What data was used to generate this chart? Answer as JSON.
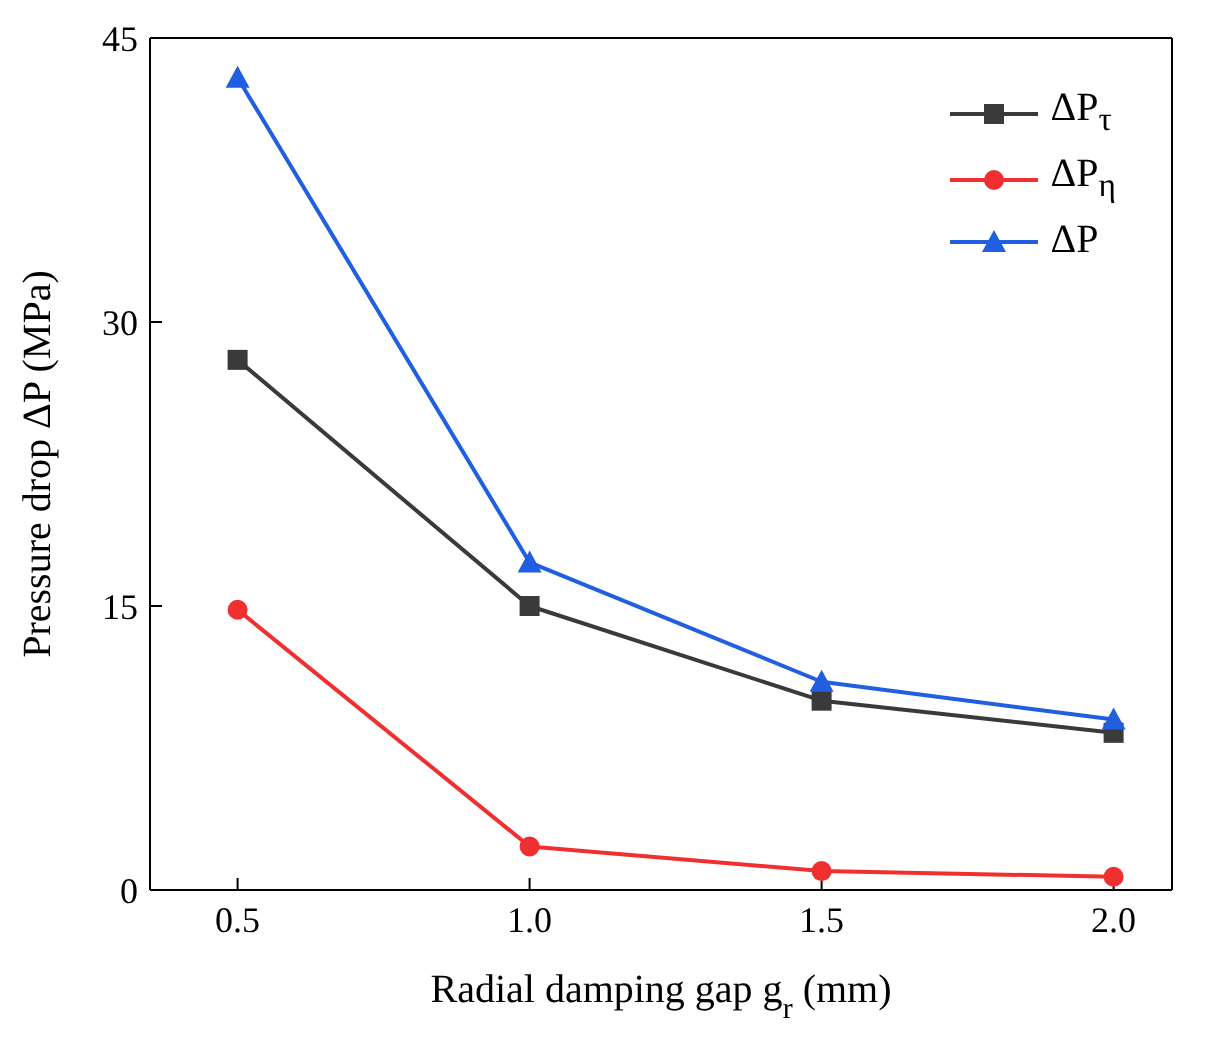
{
  "chart_data": {
    "type": "line",
    "xlabel": "Radial damping gap g$_{r}$ (mm)",
    "ylabel": "Pressure drop ΔP (MPa)",
    "x": [
      0.5,
      1.0,
      1.5,
      2.0
    ],
    "series": [
      {
        "name": "ΔP$_{τ}$",
        "color": "#3a3a3a",
        "marker": "square",
        "values": [
          28,
          15,
          10,
          8.3
        ]
      },
      {
        "name": "ΔP$_{η}$",
        "color": "#f03030",
        "marker": "circle",
        "values": [
          14.8,
          2.3,
          1.0,
          0.7
        ]
      },
      {
        "name": "ΔP",
        "color": "#1f5fe0",
        "marker": "triangle",
        "values": [
          42.9,
          17.3,
          11.0,
          9.0
        ]
      }
    ],
    "xlim": [
      0.35,
      2.1
    ],
    "xticks": [
      {
        "value": 0.5,
        "label": "0.5"
      },
      {
        "value": 1.0,
        "label": "1.0"
      },
      {
        "value": 1.5,
        "label": "1.5"
      },
      {
        "value": 2.0,
        "label": "2.0"
      }
    ],
    "ylim": [
      0,
      45
    ],
    "yticks": [
      0,
      15,
      30,
      45
    ],
    "legend": "top right"
  }
}
